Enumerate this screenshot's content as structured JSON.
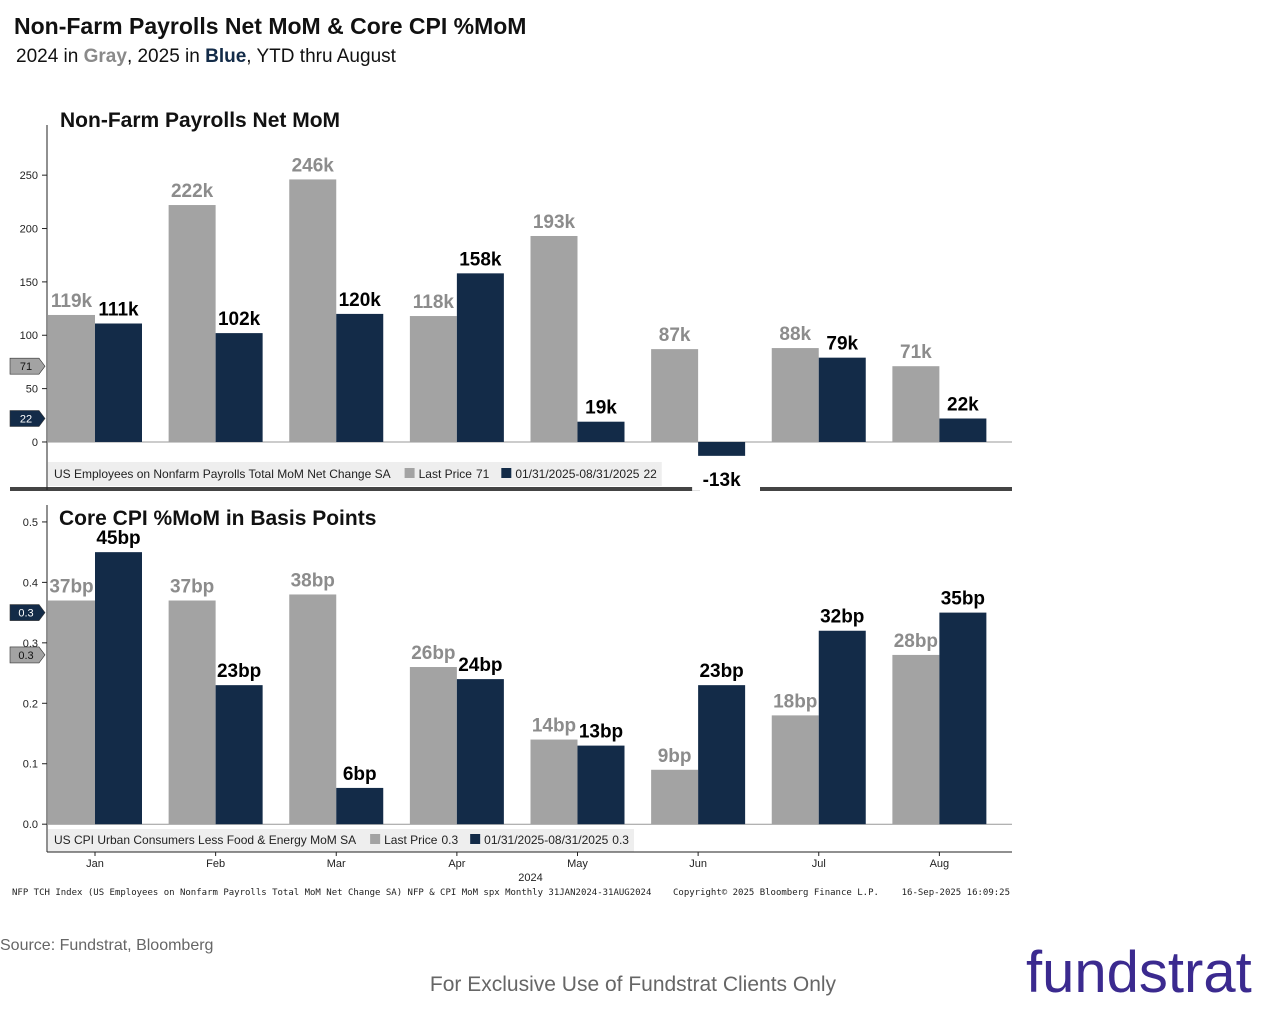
{
  "title": "Non-Farm Payrolls Net MoM & Core CPI %MoM",
  "subtitle": [
    "2024 in ",
    "Gray",
    ", 2025 in ",
    "Blue",
    ", YTD thru August"
  ],
  "chart_data": [
    {
      "type": "bar",
      "title": "Non-Farm Payrolls Net MoM",
      "legend_title": "US Employees on Nonfarm Payrolls Total MoM Net Change SA",
      "ylim": [
        -45,
        297
      ],
      "yticks": [
        0,
        50,
        100,
        150,
        200,
        250
      ],
      "series": [
        {
          "name": "Last Price",
          "color": "#a3a3a3",
          "last_price": 71,
          "values": [
            119,
            222,
            246,
            118,
            193,
            87,
            88,
            71
          ],
          "value_labels": [
            "119k",
            "222k",
            "246k",
            "118k",
            "193k",
            "87k",
            "88k",
            "71k"
          ]
        },
        {
          "name": "01/31/2025-08/31/2025",
          "color": "#132b48",
          "last_price": 22,
          "values": [
            111,
            102,
            120,
            158,
            19,
            -13,
            79,
            22
          ],
          "value_labels": [
            "111k",
            "102k",
            "120k",
            "158k",
            "19k",
            "-13k",
            "79k",
            "22k"
          ]
        }
      ]
    },
    {
      "type": "bar",
      "title": "Core CPI %MoM in Basis Points",
      "legend_title": "US CPI Urban Consumers Less Food & Energy MoM SA",
      "categories": [
        "Jan",
        "Feb",
        "Mar",
        "Apr",
        "May",
        "Jun",
        "Jul",
        "Aug"
      ],
      "xlabel": "2024",
      "ylim": [
        -0.046,
        0.528
      ],
      "yticks": [
        {
          "value": 0,
          "label": "0.0"
        },
        0.1,
        0.2,
        0.3,
        0.4,
        0.5
      ],
      "series": [
        {
          "name": "Last Price",
          "color": "#a3a3a3",
          "last_price": 0.3,
          "values": [
            0.37,
            0.37,
            0.38,
            0.26,
            0.14,
            0.09,
            0.18,
            0.28
          ],
          "value_labels": [
            "37bp",
            "37bp",
            "38bp",
            "26bp",
            "14bp",
            "9bp",
            "18bp",
            "28bp"
          ]
        },
        {
          "name": "01/31/2025-08/31/2025",
          "color": "#132b48",
          "last_price": 0.3,
          "values": [
            0.45,
            0.23,
            0.06,
            0.24,
            0.13,
            0.23,
            0.32,
            0.35
          ],
          "value_labels": [
            "45bp",
            "23bp",
            "6bp",
            "24bp",
            "13bp",
            "23bp",
            "32bp",
            "35bp"
          ]
        }
      ]
    }
  ],
  "footer": {
    "index": "NFP TCH Index (US Employees on Nonfarm Payrolls Total MoM Net Change SA) NFP & CPI MoM spx  Monthly 31JAN2024-31AUG2024",
    "copyright": "Copyright© 2025 Bloomberg Finance L.P.",
    "timestamp": "16-Sep-2025 16:09:25"
  },
  "source": "Source: Fundstrat, Bloomberg",
  "disclaimer": "For Exclusive Use of Fundstrat Clients Only",
  "logo": "fundstrat"
}
